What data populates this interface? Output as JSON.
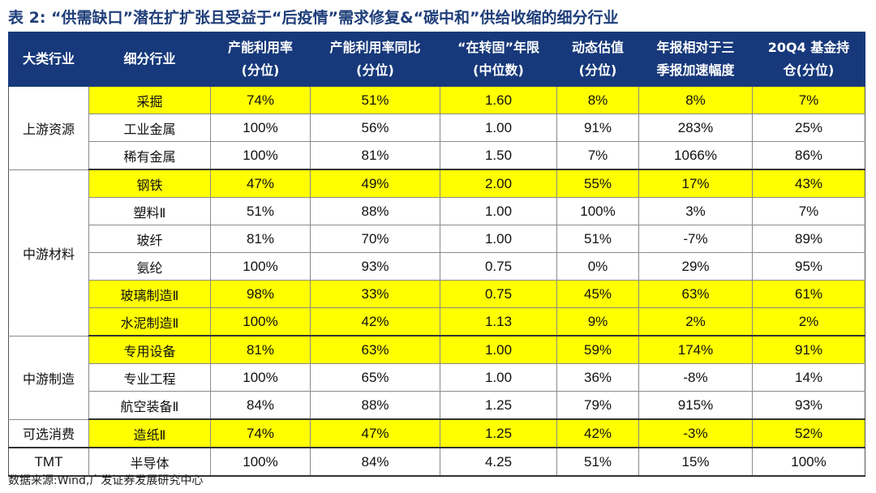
{
  "title": "表 2: “供需缺口”潜在扩扩张且受益于“后疫情”需求修复&“碳中和”供给收缩的细分行业",
  "headers": [
    {
      "line1": "大类行业",
      "line2": ""
    },
    {
      "line1": "细分行业",
      "line2": ""
    },
    {
      "line1": "产能利用率",
      "line2": "(分位)"
    },
    {
      "line1": "产能利用率同比",
      "line2": "(分位)"
    },
    {
      "line1": "“在转固”年限",
      "line2": "(中位数)"
    },
    {
      "line1": "动态估值",
      "line2": "(分位)"
    },
    {
      "line1": "年报相对于三",
      "line2": "季报加速幅度"
    },
    {
      "line1": "20Q4 基金持",
      "line2": "仓(分位)"
    }
  ],
  "categories": [
    "上游资源",
    "中游材料",
    "中游制造",
    "可选消费",
    "TMT"
  ],
  "rows": [
    {
      "sub": "采掘",
      "v": [
        "74%",
        "51%",
        "1.60",
        "8%",
        "8%",
        "7%"
      ]
    },
    {
      "sub": "工业金属",
      "v": [
        "100%",
        "56%",
        "1.00",
        "91%",
        "283%",
        "25%"
      ]
    },
    {
      "sub": "稀有金属",
      "v": [
        "100%",
        "81%",
        "1.50",
        "7%",
        "1066%",
        "86%"
      ]
    },
    {
      "sub": "钢铁",
      "v": [
        "47%",
        "49%",
        "2.00",
        "55%",
        "17%",
        "43%"
      ]
    },
    {
      "sub": "塑料Ⅱ",
      "v": [
        "51%",
        "88%",
        "1.00",
        "100%",
        "3%",
        "7%"
      ]
    },
    {
      "sub": "玻纤",
      "v": [
        "81%",
        "70%",
        "1.00",
        "51%",
        "-7%",
        "89%"
      ]
    },
    {
      "sub": "氨纶",
      "v": [
        "100%",
        "93%",
        "0.75",
        "0%",
        "29%",
        "95%"
      ]
    },
    {
      "sub": "玻璃制造Ⅱ",
      "v": [
        "98%",
        "33%",
        "0.75",
        "45%",
        "63%",
        "61%"
      ]
    },
    {
      "sub": "水泥制造Ⅱ",
      "v": [
        "100%",
        "42%",
        "1.13",
        "9%",
        "2%",
        "2%"
      ]
    },
    {
      "sub": "专用设备",
      "v": [
        "81%",
        "63%",
        "1.00",
        "59%",
        "174%",
        "91%"
      ]
    },
    {
      "sub": "专业工程",
      "v": [
        "100%",
        "65%",
        "1.00",
        "36%",
        "-8%",
        "14%"
      ]
    },
    {
      "sub": "航空装备Ⅱ",
      "v": [
        "84%",
        "88%",
        "1.25",
        "79%",
        "915%",
        "93%"
      ]
    },
    {
      "sub": "造纸Ⅱ",
      "v": [
        "74%",
        "47%",
        "1.25",
        "42%",
        "-3%",
        "52%"
      ]
    },
    {
      "sub": "半导体",
      "v": [
        "100%",
        "84%",
        "4.25",
        "51%",
        "15%",
        "100%"
      ]
    }
  ],
  "source": "数据来源:Wind,广发证券发展研究中心",
  "colors": {
    "header_bg": "#17397b",
    "highlight": "#ffff00",
    "title": "#1f3e7a"
  }
}
